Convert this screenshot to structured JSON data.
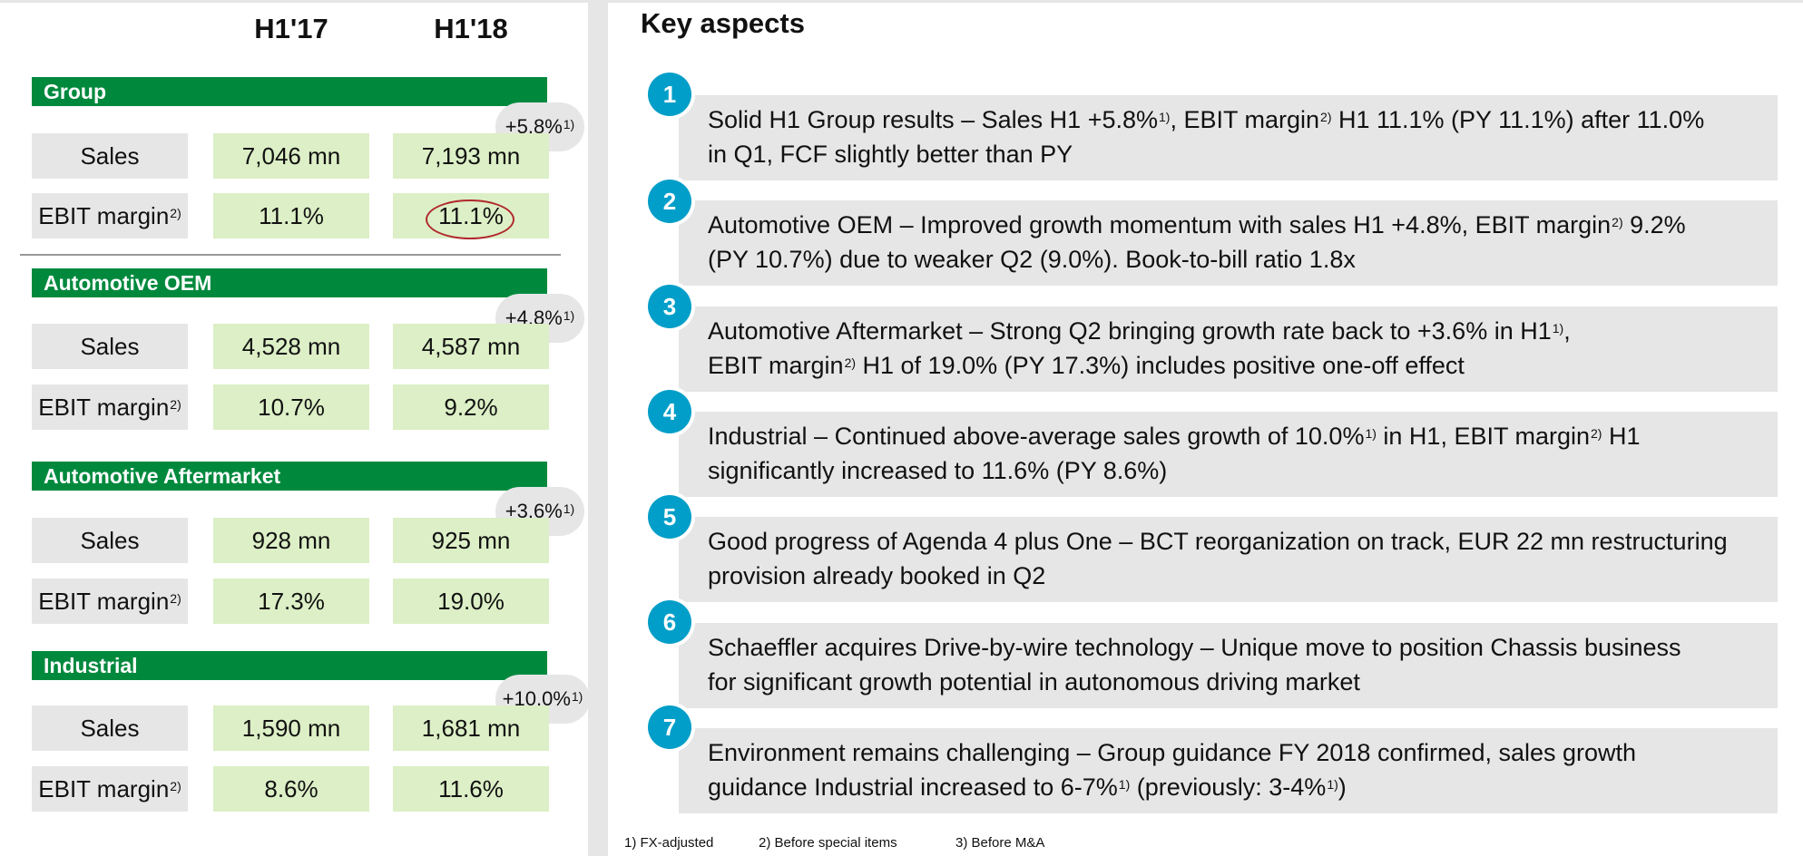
{
  "columns": {
    "prev": "H1'17",
    "curr": "H1'18"
  },
  "segments": [
    {
      "name": "Group",
      "growth": "+5.8%",
      "growth_sup": "1)",
      "sales_label": "Sales",
      "sales_prev": "7,046 mn",
      "sales_curr": "7,193 mn",
      "margin_label": "EBIT margin",
      "margin_sup": "2)",
      "margin_prev": "11.1%",
      "margin_curr": "11.1%"
    },
    {
      "name": "Automotive OEM",
      "growth": "+4.8%",
      "growth_sup": "1)",
      "sales_label": "Sales",
      "sales_prev": "4,528 mn",
      "sales_curr": "4,587 mn",
      "margin_label": "EBIT margin",
      "margin_sup": "2)",
      "margin_prev": "10.7%",
      "margin_curr": "9.2%"
    },
    {
      "name": "Automotive Aftermarket",
      "growth": "+3.6%",
      "growth_sup": "1)",
      "sales_label": "Sales",
      "sales_prev": "928 mn",
      "sales_curr": "925 mn",
      "margin_label": "EBIT margin",
      "margin_sup": "2)",
      "margin_prev": "17.3%",
      "margin_curr": "19.0%"
    },
    {
      "name": "Industrial",
      "growth": "+10.0%",
      "growth_sup": "1)",
      "sales_label": "Sales",
      "sales_prev": "1,590 mn",
      "sales_curr": "1,681 mn",
      "margin_label": "EBIT margin",
      "margin_sup": "2)",
      "margin_prev": "8.6%",
      "margin_curr": "11.6%"
    }
  ],
  "key_aspects": {
    "title": "Key aspects",
    "items": [
      {
        "num": "1",
        "l1a": "Solid H1 Group results – Sales H1 +5.8%",
        "l1s1": "1)",
        "l1b": ", EBIT margin",
        "l1s2": "2)",
        "l1c": " H1 11.1% (PY 11.1%) after 11.0%",
        "l2": "in Q1, FCF slightly better than PY"
      },
      {
        "num": "2",
        "l1a": "Automotive OEM – Improved growth momentum with sales H1 +4.8%, EBIT margin",
        "l1s1": "2)",
        "l1b": " 9.2%",
        "l2": "(PY 10.7%) due to weaker Q2 (9.0%). Book-to-bill ratio 1.8x"
      },
      {
        "num": "3",
        "l1a": "Automotive Aftermarket – Strong Q2 bringing growth rate back to +3.6% in H1",
        "l1s1": "1)",
        "l1b": ",",
        "l2a": "EBIT margin",
        "l2s1": "2)",
        "l2b": " H1 of 19.0% (PY 17.3%) includes positive one-off effect"
      },
      {
        "num": "4",
        "l1a": "Industrial – Continued above-average sales growth of 10.0%",
        "l1s1": "1)",
        "l1b": " in H1, EBIT margin",
        "l1s2": "2)",
        "l1c": " H1",
        "l2": "significantly increased to 11.6% (PY 8.6%)"
      },
      {
        "num": "5",
        "l1a": "Good progress of Agenda 4 plus One – BCT reorganization on track, EUR 22 mn restructuring",
        "l2": "provision already booked in Q2"
      },
      {
        "num": "6",
        "l1a": "Schaeffler acquires Drive-by-wire technology – Unique move to position Chassis business",
        "l2": "for significant growth potential in autonomous driving market"
      },
      {
        "num": "7",
        "l1a": "Environment remains challenging – Group guidance FY 2018 confirmed, sales growth",
        "l2a": "guidance Industrial increased to 6-7%",
        "l2s1": "1)",
        "l2b": " (previously: 3-4%",
        "l2s2": "1)",
        "l2c": ")"
      }
    ]
  },
  "footnotes": [
    "1) FX-adjusted",
    "2) Before special items",
    "3) Before M&A"
  ]
}
